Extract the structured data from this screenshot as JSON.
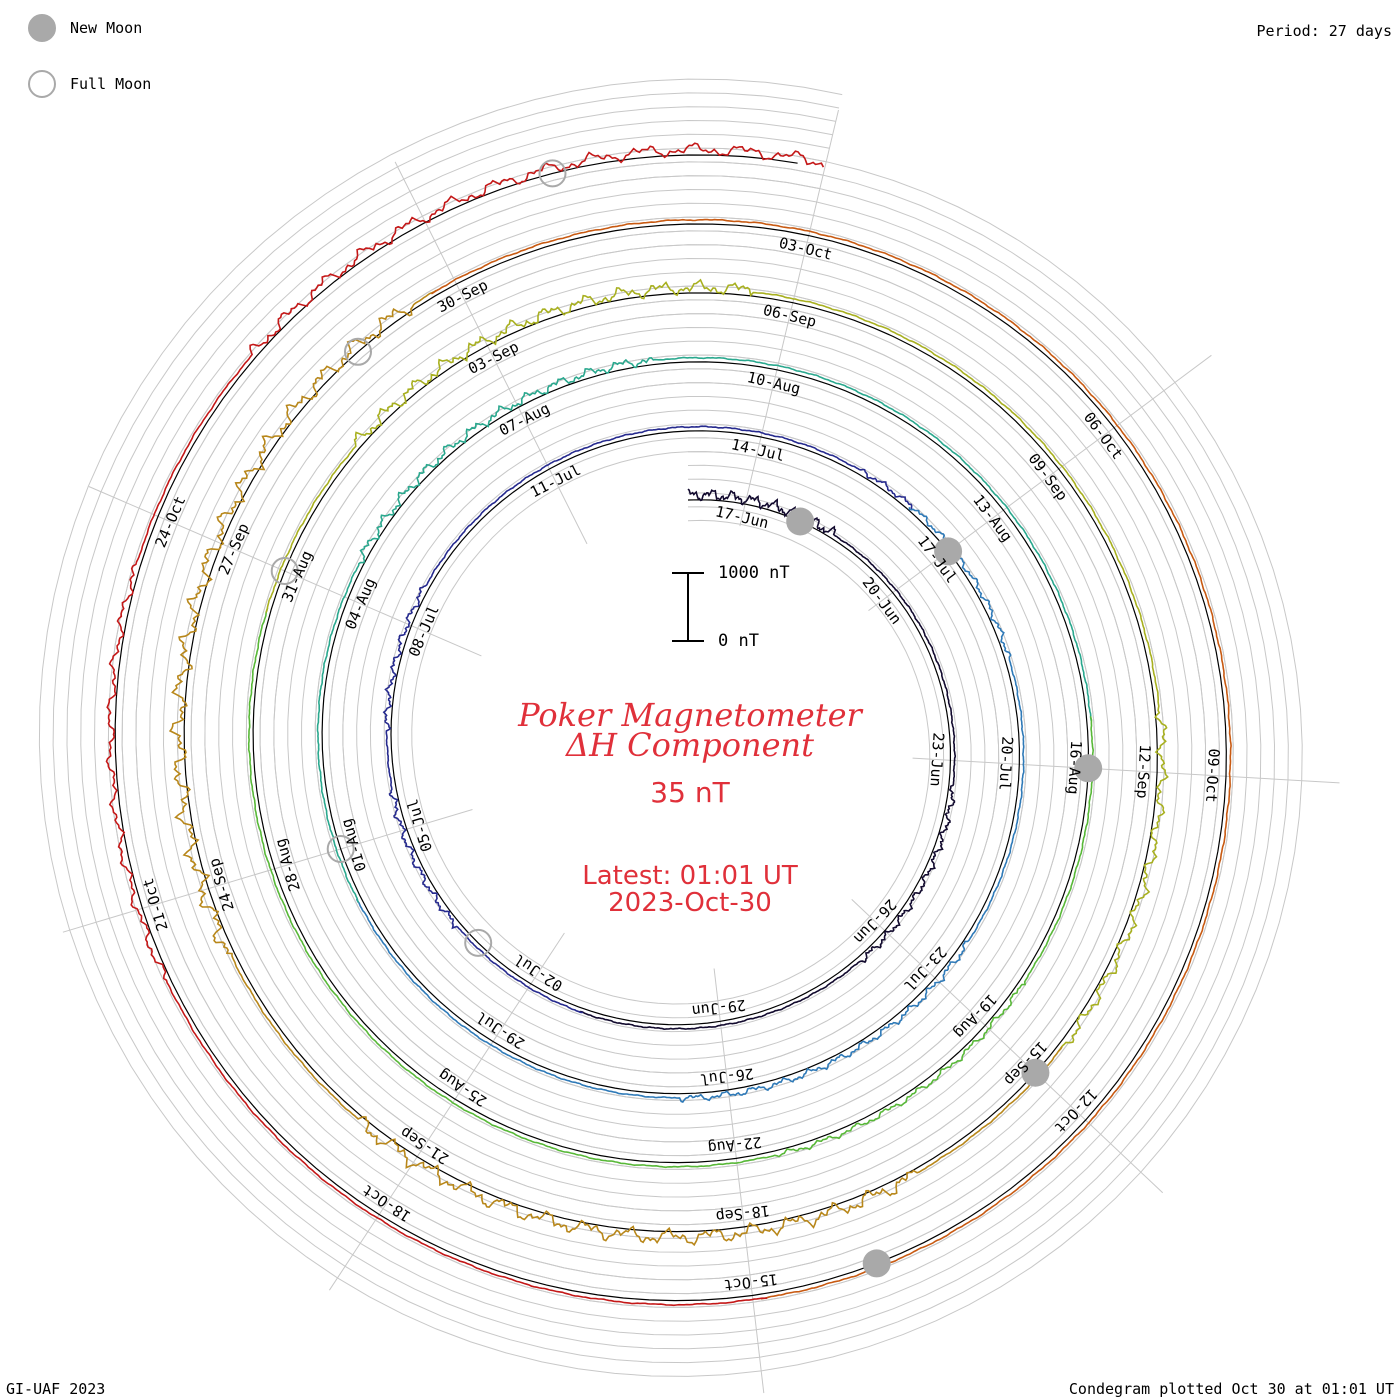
{
  "legend": {
    "new_moon_label": "New Moon",
    "full_moon_label": "Full Moon"
  },
  "header": {
    "period": "Period: 27 days"
  },
  "footer": {
    "left": "GI-UAF 2023",
    "right": "Condegram plotted Oct 30 at 01:01 UT"
  },
  "title": {
    "line1": "Poker Magnetometer",
    "line2": "ΔH Component",
    "baseline": "35 nT",
    "latest": "Latest: 01:01 UT",
    "latest_date": "2023-Oct-30"
  },
  "scale_bar": {
    "top_label": "1000 nT",
    "bottom_label": "0 nT"
  },
  "colors": {
    "grid": "#c8c8c8",
    "baseline": "#000000",
    "title": "#e0303a",
    "moon": "#a9a9a9"
  },
  "chart_data": {
    "type": "condegram_spiral",
    "period_days": 27,
    "start": "2023-06-16",
    "end": "2023-10-30",
    "unit": "nT",
    "series_colors": [
      "#120a2e",
      "#262a8e",
      "#2f7ab8",
      "#2aa88e",
      "#58b838",
      "#a8b020",
      "#b8871a",
      "#c85a12",
      "#c41818"
    ],
    "date_labels": [
      "17-Jun",
      "20-Jun",
      "23-Jun",
      "26-Jun",
      "29-Jun",
      "02-Jul",
      "05-Jul",
      "08-Jul",
      "11-Jul",
      "14-Jul",
      "17-Jul",
      "20-Jul",
      "23-Jul",
      "26-Jul",
      "29-Jul",
      "01-Aug",
      "04-Aug",
      "07-Aug",
      "10-Aug",
      "13-Aug",
      "16-Aug",
      "19-Aug",
      "22-Aug",
      "25-Aug",
      "28-Aug",
      "31-Aug",
      "03-Sep",
      "06-Sep",
      "09-Sep",
      "12-Sep",
      "15-Sep",
      "18-Sep",
      "21-Sep",
      "24-Sep",
      "27-Sep",
      "30-Sep",
      "03-Oct",
      "06-Oct",
      "09-Oct",
      "12-Oct",
      "15-Oct",
      "18-Oct",
      "21-Oct",
      "24-Oct"
    ],
    "new_moons": [
      "2023-06-18",
      "2023-07-17",
      "2023-08-16",
      "2023-09-15",
      "2023-10-14"
    ],
    "full_moons": [
      "2023-07-03",
      "2023-08-01",
      "2023-08-31",
      "2023-09-29",
      "2023-10-28"
    ],
    "activity": [
      {
        "start": "2023-06-16",
        "end": "2023-06-18",
        "amplitude": 120
      },
      {
        "start": "2023-06-24",
        "end": "2023-06-26",
        "amplitude": 70
      },
      {
        "start": "2023-07-04",
        "end": "2023-07-05",
        "amplitude": 70
      },
      {
        "start": "2023-07-07",
        "end": "2023-07-08",
        "amplitude": 70
      },
      {
        "start": "2023-07-16",
        "end": "2023-07-18",
        "amplitude": 60
      },
      {
        "start": "2023-07-23",
        "end": "2023-07-26",
        "amplitude": 70
      },
      {
        "start": "2023-08-05",
        "end": "2023-08-08",
        "amplitude": 100
      },
      {
        "start": "2023-08-19",
        "end": "2023-08-21",
        "amplitude": 60
      },
      {
        "start": "2023-09-02",
        "end": "2023-09-05",
        "amplitude": 140
      },
      {
        "start": "2023-09-12",
        "end": "2023-09-14",
        "amplitude": 110
      },
      {
        "start": "2023-09-17",
        "end": "2023-09-21",
        "amplitude": 160
      },
      {
        "start": "2023-09-24",
        "end": "2023-09-29",
        "amplitude": 170
      },
      {
        "start": "2023-10-21",
        "end": "2023-10-23",
        "amplitude": 90
      },
      {
        "start": "2023-10-26",
        "end": "2023-10-30",
        "amplitude": 130
      }
    ]
  }
}
